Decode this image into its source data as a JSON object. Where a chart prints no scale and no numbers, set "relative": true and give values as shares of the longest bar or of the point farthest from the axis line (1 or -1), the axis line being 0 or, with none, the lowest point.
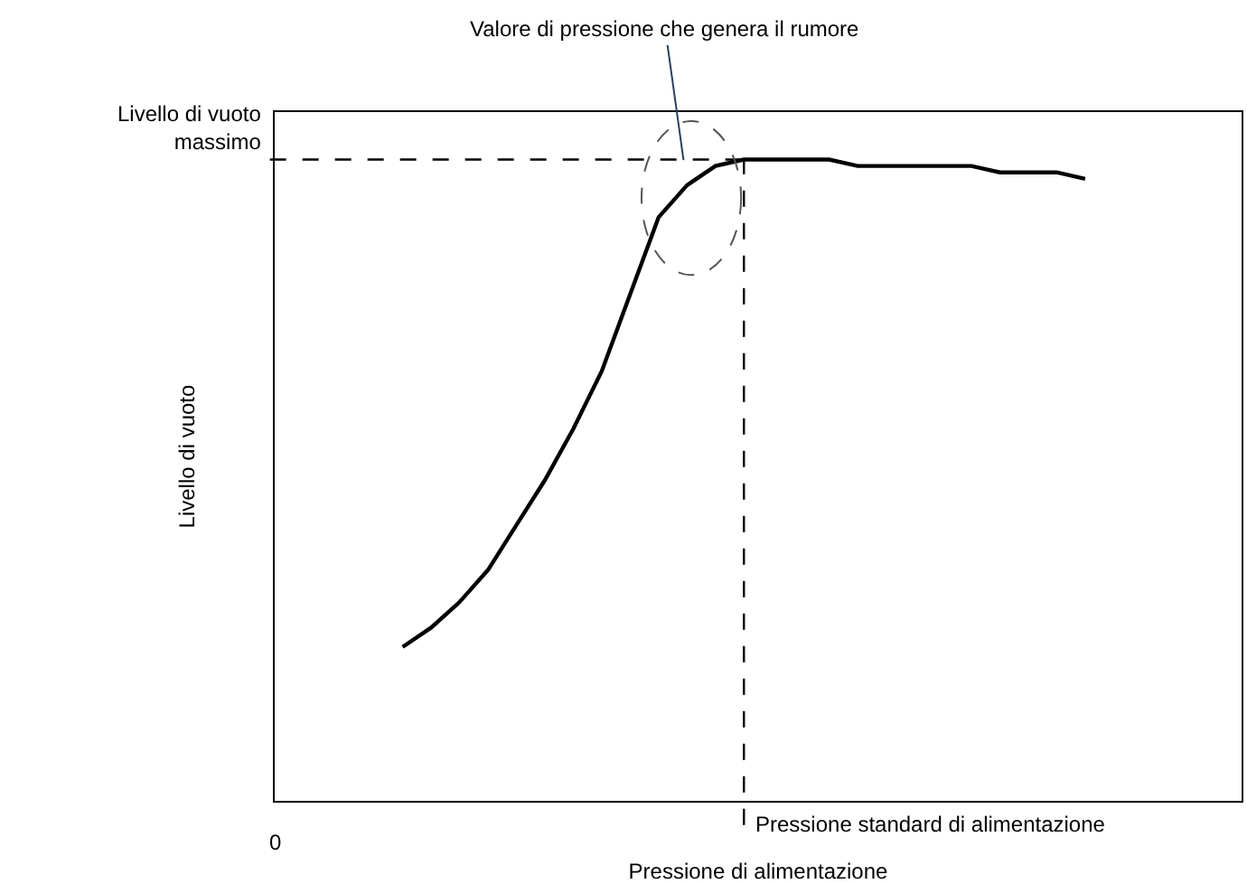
{
  "chart_data": {
    "type": "line",
    "relative": true,
    "xlabel": "Pressione di alimentazione",
    "ylabel": "Livello di vuoto",
    "categories": [
      null,
      null,
      null,
      null,
      null,
      null,
      null,
      null,
      null,
      null,
      null,
      null,
      null,
      null,
      null,
      null,
      null,
      null,
      null,
      null,
      null,
      null,
      null,
      null,
      null,
      null,
      null,
      null,
      null,
      null,
      null,
      null,
      null,
      null
    ],
    "series": [
      {
        "color": "#000000",
        "values": [
          null,
          null,
          null,
          null,
          0.24,
          0.27,
          0.31,
          0.36,
          0.43,
          0.5,
          0.58,
          0.67,
          0.79,
          0.91,
          0.96,
          0.99,
          1,
          1,
          1,
          1,
          0.99,
          0.99,
          0.99,
          0.99,
          0.99,
          0.98,
          0.98,
          0.98,
          0.97,
          null,
          null,
          null,
          null,
          null
        ]
      }
    ],
    "marker": "none",
    "line_style": "solid",
    "annotations": [
      "Valore di pressione che genera il rumore",
      "Livello di vuoto massimo",
      "Pressione standard di alimentazione",
      "0"
    ]
  }
}
